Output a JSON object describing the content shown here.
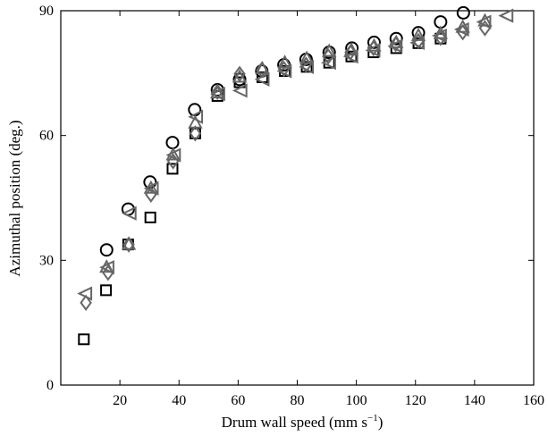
{
  "chart_data": {
    "type": "scatter",
    "title": "",
    "xlabel": "Drum wall speed (mm s",
    "xlabel_unit_exp": "−1",
    "xlabel_close": ")",
    "ylabel": "Azimuthal position (deg.)",
    "xlim": [
      0,
      160
    ],
    "ylim": [
      0,
      90
    ],
    "xticks": [
      "20",
      "40",
      "60",
      "80",
      "100",
      "120",
      "140",
      "160"
    ],
    "yticks": [
      "0",
      "30",
      "60",
      "90"
    ],
    "grid": false,
    "legend": "none",
    "series": [
      {
        "marker": "circle",
        "color": "#000000",
        "x": [
          15.5,
          22.8,
          30.2,
          37.8,
          45.3,
          53.0,
          60.5,
          68.0,
          75.5,
          83.0,
          90.8,
          98.5,
          106.0,
          113.5,
          121.0,
          128.5,
          136.2
        ],
        "y": [
          32.5,
          42.3,
          48.8,
          58.3,
          66.2,
          71.0,
          73.5,
          75.5,
          77.0,
          78.3,
          80.0,
          81.0,
          82.4,
          83.3,
          84.7,
          87.3,
          89.5
        ]
      },
      {
        "marker": "square",
        "color": "#000000",
        "x": [
          7.8,
          15.3,
          22.8,
          30.3,
          37.8,
          45.5,
          53.0,
          60.5,
          68.2,
          75.8,
          83.2,
          90.8,
          98.3,
          105.8,
          113.5,
          121.0,
          128.5
        ],
        "y": [
          11.0,
          22.8,
          33.8,
          40.3,
          52.0,
          60.5,
          69.5,
          72.8,
          74.0,
          75.5,
          76.5,
          77.5,
          79.0,
          80.0,
          81.0,
          82.2,
          83.3
        ]
      },
      {
        "marker": "diamond",
        "color": "#666666",
        "x": [
          8.5,
          16.0,
          23.0,
          30.5,
          38.0,
          45.5,
          53.0,
          60.5,
          68.0,
          75.5,
          83.0,
          90.5,
          98.0,
          105.8,
          113.3,
          121.0,
          128.5,
          136.0,
          143.5
        ],
        "y": [
          19.8,
          27.0,
          33.8,
          45.8,
          53.8,
          60.5,
          70.5,
          74.8,
          75.8,
          76.0,
          77.0,
          79.0,
          80.0,
          81.0,
          82.0,
          82.7,
          83.5,
          84.8,
          85.8
        ]
      },
      {
        "marker": "triangle-up",
        "color": "#666666",
        "x": [
          15.5,
          23.0,
          30.5,
          38.0,
          45.5,
          53.0,
          60.5,
          68.2,
          75.8,
          83.2,
          90.8,
          98.3,
          106.0,
          113.5,
          121.0,
          128.5,
          136.0,
          143.5
        ],
        "y": [
          28.3,
          33.8,
          47.3,
          55.3,
          63.0,
          70.2,
          74.0,
          76.0,
          77.5,
          78.5,
          80.2,
          80.5,
          81.5,
          82.3,
          84.0,
          84.5,
          86.0,
          87.5
        ]
      },
      {
        "marker": "triangle-left",
        "color": "#666666",
        "x": [
          8.5,
          16.0,
          23.5,
          31.0,
          38.5,
          46.0,
          53.5,
          61.0,
          68.5,
          76.0,
          83.5,
          91.0,
          98.5,
          106.0,
          113.5,
          121.0,
          128.5,
          136.0,
          143.5,
          151.0
        ],
        "y": [
          22.0,
          28.3,
          41.3,
          47.3,
          55.3,
          64.5,
          70.0,
          70.8,
          73.5,
          75.5,
          76.5,
          77.5,
          79.0,
          80.5,
          81.5,
          82.3,
          84.0,
          85.5,
          87.3,
          88.8
        ]
      }
    ]
  }
}
